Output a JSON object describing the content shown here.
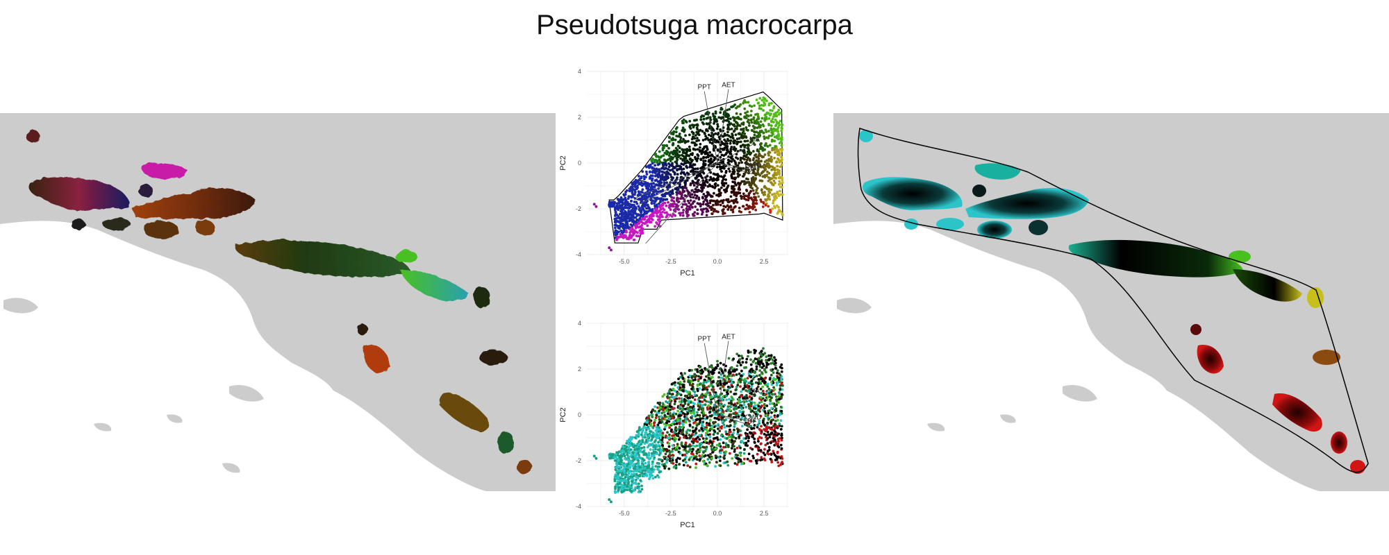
{
  "title": "Pseudotsuga macrocarpa",
  "colors": {
    "land": "#cccccc",
    "ocean": "#ffffff",
    "grid": "#ebebeb",
    "hull": "#000000",
    "cyan": "#2bc4c9",
    "green": "#58c21a",
    "yellow": "#c8c01a",
    "red": "#d01515",
    "magenta": "#c818c0",
    "blue": "#1a2aa8"
  },
  "chart_data": [
    {
      "type": "scatter",
      "panel": "pca-top",
      "xlabel": "PC1",
      "ylabel": "PC2",
      "xlim": [
        -7,
        3.8
      ],
      "ylim": [
        -4,
        4
      ],
      "xticks": [
        -5.0,
        -2.5,
        0.0,
        2.5
      ],
      "xtick_labels": [
        "-5.0",
        "-2.5",
        "0.0",
        "2.5"
      ],
      "yticks": [
        -4,
        -2,
        0,
        2,
        4
      ],
      "ytick_labels": [
        "-4",
        "-2",
        "0",
        "2",
        "4"
      ],
      "grid": true,
      "color_mode": "position",
      "loadings": [
        {
          "name": "PPT",
          "x": -2.0,
          "y": 3.3
        },
        {
          "name": "AET",
          "x": 1.7,
          "y": 3.4
        },
        {
          "name": "MA",
          "x": 5.7,
          "y": 0.9
        },
        {
          "name": "CWD",
          "x": 5.5,
          "y": -0.3
        },
        {
          "name": "DF",
          "x": 5.3,
          "y": -0.5
        },
        {
          "name": "",
          "x": -12.0,
          "y": -1.9
        },
        {
          "name": "",
          "x": -12.5,
          "y": -1.6
        },
        {
          "name": "",
          "x": -11.0,
          "y": -3.7
        }
      ]
    },
    {
      "type": "scatter",
      "panel": "pca-bottom",
      "xlabel": "PC1",
      "ylabel": "PC2",
      "xlim": [
        -7,
        3.8
      ],
      "ylim": [
        -4,
        4
      ],
      "xticks": [
        -5.0,
        -2.5,
        0.0,
        2.5
      ],
      "xtick_labels": [
        "-5.0",
        "-2.5",
        "0.0",
        "2.5"
      ],
      "yticks": [
        -4,
        -2,
        0,
        2,
        4
      ],
      "ytick_labels": [
        "-4",
        "-2",
        "0",
        "2",
        "4"
      ],
      "grid": true,
      "color_mode": "geography",
      "loadings": [
        {
          "name": "PPT",
          "x": -2.0,
          "y": 3.3
        },
        {
          "name": "AET",
          "x": 1.7,
          "y": 3.4
        },
        {
          "name": "MA",
          "x": 5.7,
          "y": 0.9
        },
        {
          "name": "CWD",
          "x": 5.5,
          "y": -0.3
        },
        {
          "name": "DF",
          "x": 5.3,
          "y": -0.5
        }
      ]
    }
  ]
}
